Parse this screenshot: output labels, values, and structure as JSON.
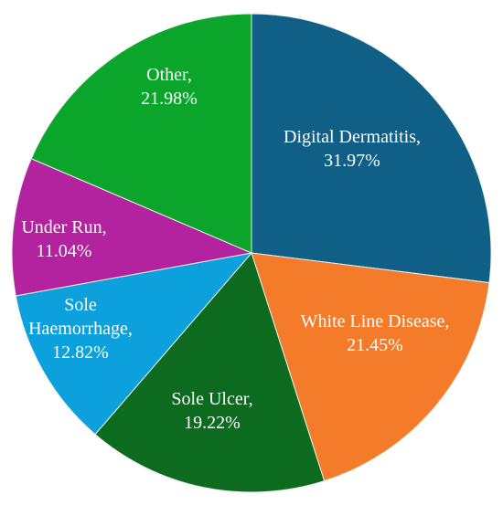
{
  "chart_data": {
    "type": "pie",
    "categories": [
      "Digital Dermatitis,",
      "White Line Disease,",
      "Sole Ulcer,",
      "Sole Haemorrhage,",
      "Under Run,",
      "Other,"
    ],
    "values": [
      31.97,
      21.45,
      19.22,
      12.82,
      11.04,
      21.98
    ],
    "value_labels": [
      "31.97%",
      "21.45%",
      "19.22%",
      "12.82%",
      "11.04%",
      "21.98%"
    ],
    "colors": [
      "#105f87",
      "#f47b2a",
      "#0d6b1f",
      "#0ca0dc",
      "#b3229f",
      "#0ba52c"
    ]
  }
}
